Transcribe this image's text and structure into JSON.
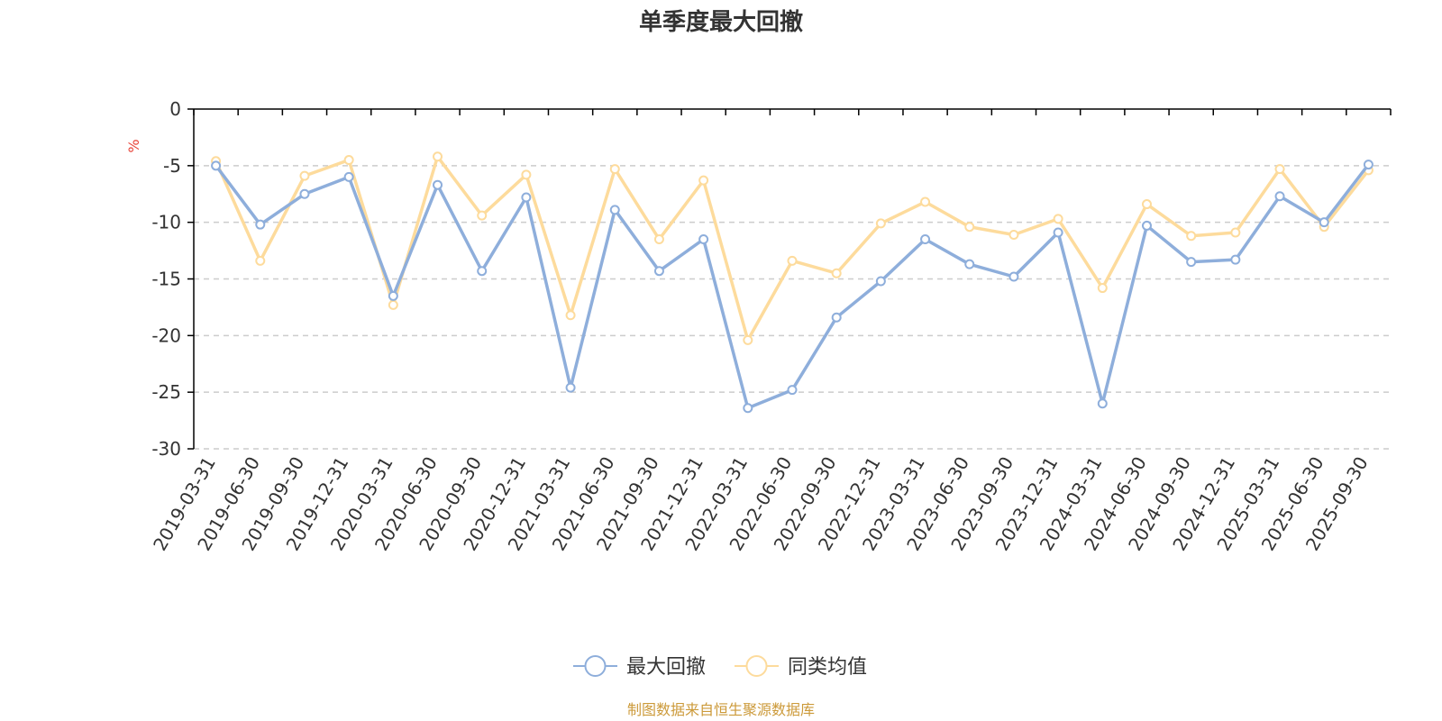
{
  "chart_data": {
    "type": "line",
    "title": "单季度最大回撤",
    "ylabel": "%",
    "ylim": [
      -30,
      0
    ],
    "yticks": [
      0,
      -5,
      -10,
      -15,
      -20,
      -25,
      -30
    ],
    "yticks_labels": [
      "0",
      "-5",
      "-10",
      "-15",
      "-20",
      "-25",
      "-30"
    ],
    "grid": true,
    "legend_position": "bottom-center",
    "categories": [
      "2019-03-31",
      "2019-06-30",
      "2019-09-30",
      "2019-12-31",
      "2020-03-31",
      "2020-06-30",
      "2020-09-30",
      "2020-12-31",
      "2021-03-31",
      "2021-06-30",
      "2021-09-30",
      "2021-12-31",
      "2022-03-31",
      "2022-06-30",
      "2022-09-30",
      "2022-12-31",
      "2023-03-31",
      "2023-06-30",
      "2023-09-30",
      "2023-12-31",
      "2024-03-31",
      "2024-06-30",
      "2024-09-30",
      "2024-12-31",
      "2025-03-31",
      "2025-06-30",
      "2025-09-30"
    ],
    "series": [
      {
        "name": "最大回撤",
        "color": "#8eaedb",
        "values": [
          -5.0,
          -10.2,
          -7.5,
          -6.0,
          -16.5,
          -6.7,
          -14.3,
          -7.8,
          -24.6,
          -8.9,
          -14.3,
          -11.5,
          -26.4,
          -24.8,
          -18.4,
          -15.2,
          -11.5,
          -13.7,
          -14.8,
          -10.9,
          -26.0,
          -10.3,
          -13.5,
          -13.3,
          -7.7,
          -10.0,
          -4.9
        ]
      },
      {
        "name": "同类均值",
        "color": "#fddb9c",
        "values": [
          -4.6,
          -13.4,
          -5.9,
          -4.5,
          -17.3,
          -4.2,
          -9.4,
          -5.8,
          -18.2,
          -5.3,
          -11.5,
          -6.3,
          -20.4,
          -13.4,
          -14.5,
          -10.1,
          -8.2,
          -10.4,
          -11.1,
          -9.7,
          -15.8,
          -8.4,
          -11.2,
          -10.9,
          -5.3,
          -10.4,
          -5.4
        ]
      }
    ]
  },
  "source_note": "制图数据来自恒生聚源数据库",
  "colors": {
    "axis": "#000000",
    "grid": "#cccccc",
    "text": "#333333",
    "unit": "#e8443a",
    "source": "#cc9a3a"
  }
}
